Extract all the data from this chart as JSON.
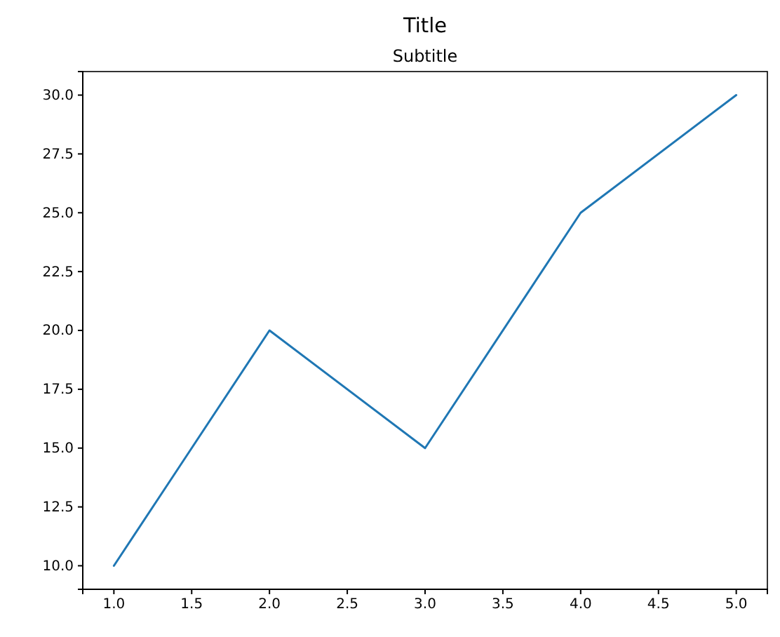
{
  "chart_data": {
    "type": "line",
    "title": "Title",
    "subtitle": "Subtitle",
    "x": [
      1,
      2,
      3,
      4,
      5
    ],
    "series": [
      {
        "color": "#1f77b4",
        "values": [
          10,
          20,
          15,
          25,
          30
        ]
      }
    ],
    "xlim": [
      0.8,
      5.2
    ],
    "ylim": [
      9,
      31
    ],
    "xticks": [
      {
        "value": 1,
        "label": "1.0"
      },
      {
        "value": 1.5,
        "label": "1.5"
      },
      {
        "value": 2,
        "label": "2.0"
      },
      {
        "value": 2.5,
        "label": "2.5"
      },
      {
        "value": 3,
        "label": "3.0"
      },
      {
        "value": 3.5,
        "label": "3.5"
      },
      {
        "value": 4,
        "label": "4.0"
      },
      {
        "value": 4.5,
        "label": "4.5"
      },
      {
        "value": 5,
        "label": "5.0"
      }
    ],
    "yticks": [
      {
        "value": 10,
        "label": "10.0"
      },
      {
        "value": 12.5,
        "label": "12.5"
      },
      {
        "value": 15,
        "label": "15.0"
      },
      {
        "value": 17.5,
        "label": "17.5"
      },
      {
        "value": 20,
        "label": "20.0"
      },
      {
        "value": 22.5,
        "label": "22.5"
      },
      {
        "value": 25,
        "label": "25.0"
      },
      {
        "value": 27.5,
        "label": "27.5"
      },
      {
        "value": 30,
        "label": "30.0"
      }
    ],
    "grid": false,
    "marker": "none",
    "line_style": "solid"
  }
}
